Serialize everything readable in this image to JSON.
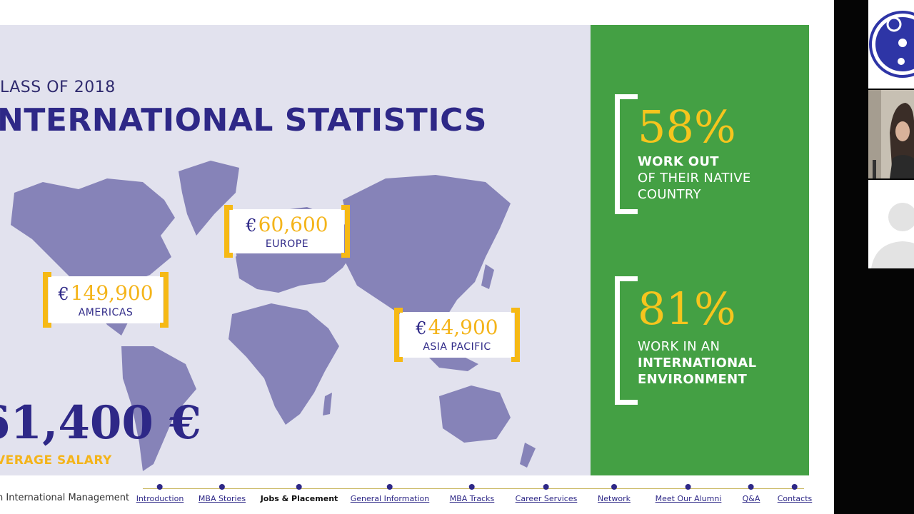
{
  "slide": {
    "kicker": "LASS OF 2018",
    "headline": "NTERNATIONAL STATISTICS",
    "regions": [
      {
        "currency": "€",
        "amount": "149,900",
        "label": "AMERICAS"
      },
      {
        "currency": "€",
        "amount": "60,600",
        "label": "EUROPE"
      },
      {
        "currency": "€",
        "amount": "44,900",
        "label": "ASIA PACIFIC"
      }
    ],
    "average": {
      "value": "61,400 €",
      "label": "VERAGE SALARY"
    },
    "stats": [
      {
        "percent": "58%",
        "line1": "WORK OUT",
        "line2": "OF THEIR NATIVE",
        "line3": "COUNTRY"
      },
      {
        "percent": "81%",
        "line1": "WORK IN AN",
        "line2": "INTERNATIONAL",
        "line3": "ENVIRONMENT"
      }
    ]
  },
  "nav": {
    "course_label": "n International Management",
    "items": [
      {
        "label": "Introduction",
        "active": false
      },
      {
        "label": "MBA Stories",
        "active": false
      },
      {
        "label": "Jobs & Placement",
        "active": true
      },
      {
        "label": "General Information",
        "active": false
      },
      {
        "label": "MBA Tracks",
        "active": false
      },
      {
        "label": "Career Services",
        "active": false
      },
      {
        "label": "Network",
        "active": false
      },
      {
        "label": "Meet Our Alumni",
        "active": false
      },
      {
        "label": "Q&A",
        "active": false
      },
      {
        "label": "Contacts",
        "active": false
      }
    ]
  },
  "colors": {
    "accent_navy": "#2e2887",
    "accent_gold": "#f4b41a",
    "panel_green": "#44a044",
    "map_purple": "#8683b8"
  },
  "participants": [
    {
      "type": "logo",
      "icon": "bear-logo-icon"
    },
    {
      "type": "camera",
      "icon": "person-video-icon"
    },
    {
      "type": "avatar",
      "icon": "user-avatar-icon"
    }
  ]
}
